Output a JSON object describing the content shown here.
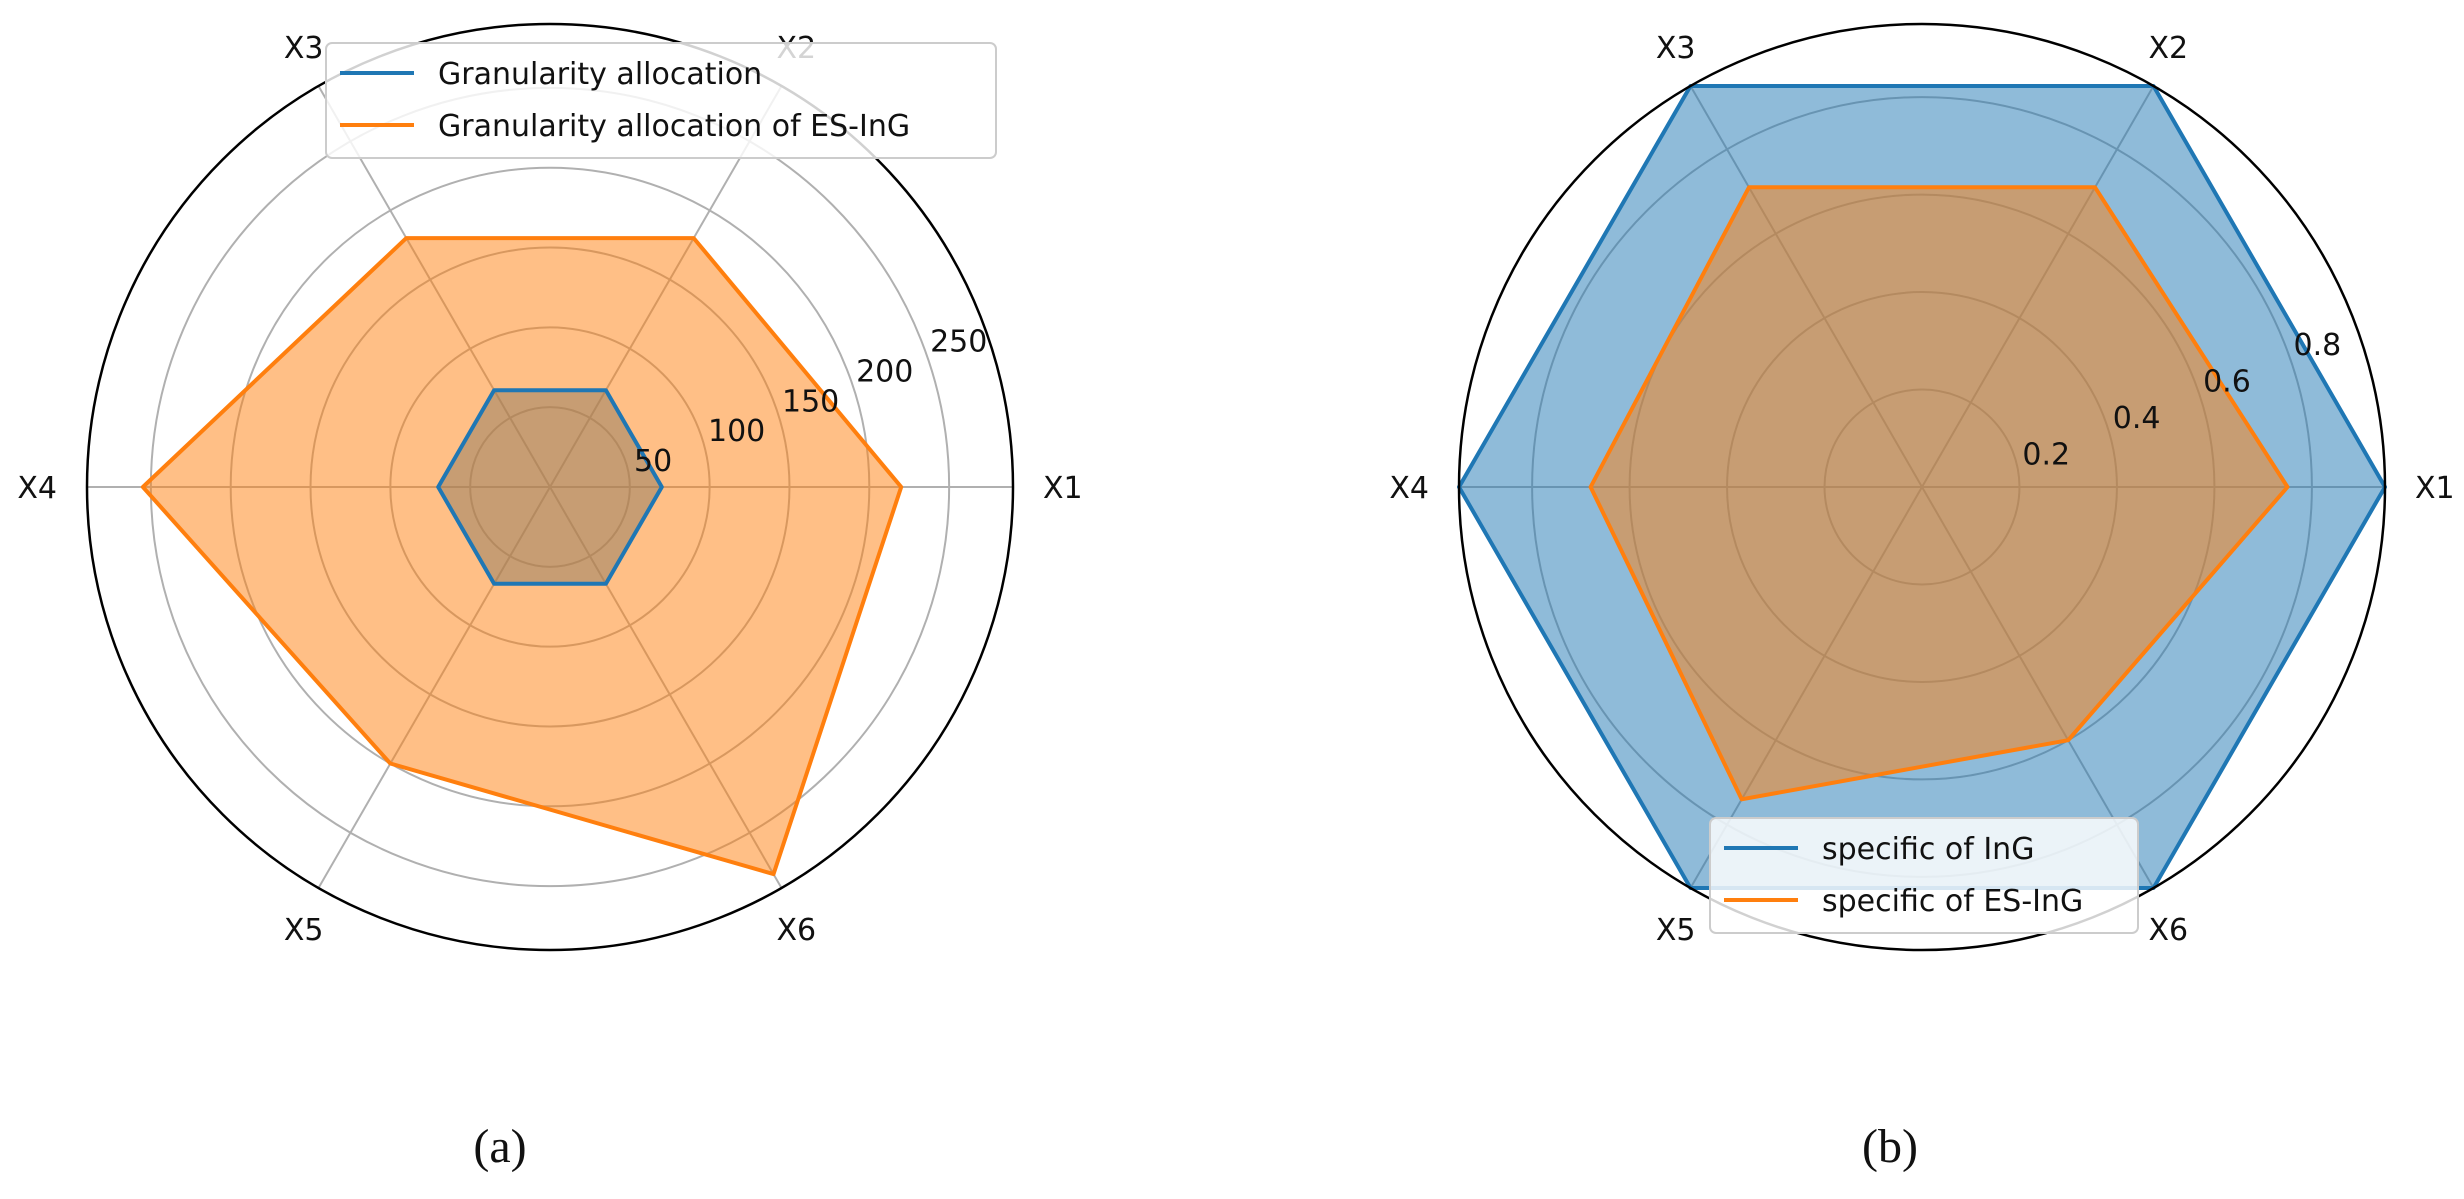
{
  "chart_data": [
    {
      "type": "radar",
      "panel_label": "(a)",
      "axes": [
        "X1",
        "X2",
        "X3",
        "X4",
        "X5",
        "X6"
      ],
      "rlim": [
        0,
        290
      ],
      "rticks": [
        50,
        100,
        150,
        200,
        250
      ],
      "grid": true,
      "legend_position": "top-center",
      "series": [
        {
          "name": "Granularity allocation",
          "color": "#1f77b4",
          "values": [
            70,
            70,
            70,
            70,
            70,
            70
          ]
        },
        {
          "name": "Granularity allocation of ES-InG",
          "color": "#ff7f0e",
          "values": [
            220,
            180,
            180,
            255,
            200,
            280
          ]
        }
      ]
    },
    {
      "type": "radar",
      "panel_label": "(b)",
      "axes": [
        "X1",
        "X2",
        "X3",
        "X4",
        "X5",
        "X6"
      ],
      "rlim": [
        0,
        0.95
      ],
      "rticks": [
        0.2,
        0.4,
        0.6,
        0.8
      ],
      "grid": true,
      "legend_position": "bottom-center",
      "series": [
        {
          "name": "specific of InG",
          "color": "#1f77b4",
          "values": [
            0.95,
            0.95,
            0.95,
            0.95,
            0.95,
            0.95
          ]
        },
        {
          "name": "specific of ES-InG",
          "color": "#ff7f0e",
          "values": [
            0.75,
            0.71,
            0.71,
            0.68,
            0.74,
            0.6
          ]
        }
      ]
    }
  ]
}
